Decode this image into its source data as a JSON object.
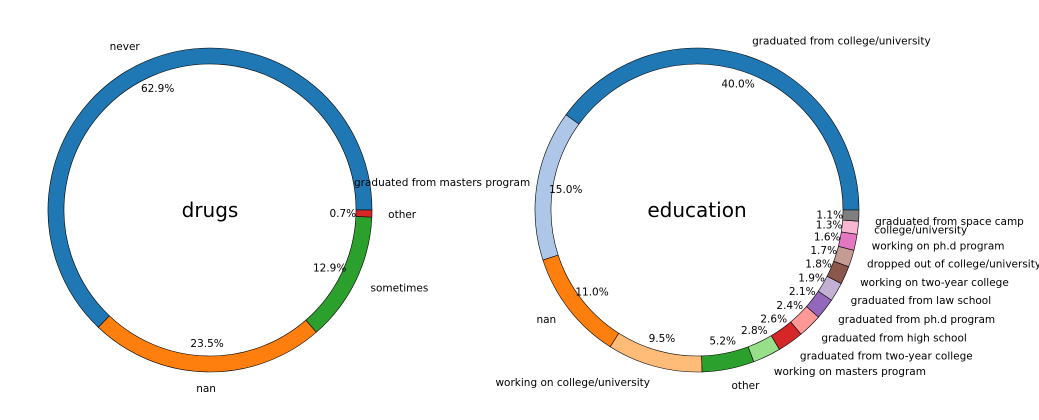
{
  "chart_data": [
    {
      "type": "pie",
      "title": "drugs",
      "slices": [
        {
          "label": "never",
          "percent": 62.9,
          "color": "#1f77b4"
        },
        {
          "label": "nan",
          "percent": 23.5,
          "color": "#ff7f0e"
        },
        {
          "label": "sometimes",
          "percent": 12.9,
          "color": "#2ca02c"
        },
        {
          "label": "other",
          "percent": 0.7,
          "color": "#d62728"
        }
      ]
    },
    {
      "type": "pie",
      "title": "education",
      "slices": [
        {
          "label": "graduated from college/university",
          "percent": 40.0,
          "color": "#1f77b4"
        },
        {
          "label": "",
          "percent": 15.0,
          "color": "#aec7e8"
        },
        {
          "label": "nan",
          "percent": 11.0,
          "color": "#ff7f0e"
        },
        {
          "label": "working on college/university",
          "percent": 9.5,
          "color": "#ffbb78"
        },
        {
          "label": "other",
          "percent": 5.2,
          "color": "#2ca02c"
        },
        {
          "label": "working on masters program",
          "percent": 2.8,
          "color": "#98df8a"
        },
        {
          "label": "graduated from two-year college",
          "percent": 2.6,
          "color": "#d62728"
        },
        {
          "label": "graduated from high school",
          "percent": 2.4,
          "color": "#ff9896"
        },
        {
          "label": "graduated from ph.d program",
          "percent": 2.1,
          "color": "#9467bd"
        },
        {
          "label": "graduated from law school",
          "percent": 1.9,
          "color": "#c5b0d5"
        },
        {
          "label": "working on two-year college",
          "percent": 1.8,
          "color": "#8c564b"
        },
        {
          "label": "dropped out of college/university",
          "percent": 1.7,
          "color": "#c49c94"
        },
        {
          "label": "working on ph.d program",
          "percent": 1.6,
          "color": "#e377c2"
        },
        {
          "label": "college/university",
          "percent": 1.3,
          "color": "#f7b6d2"
        },
        {
          "label": "graduated from space camp",
          "percent": 1.1,
          "color": "#7f7f7f"
        }
      ],
      "stray_label": "graduated from masters program"
    }
  ]
}
